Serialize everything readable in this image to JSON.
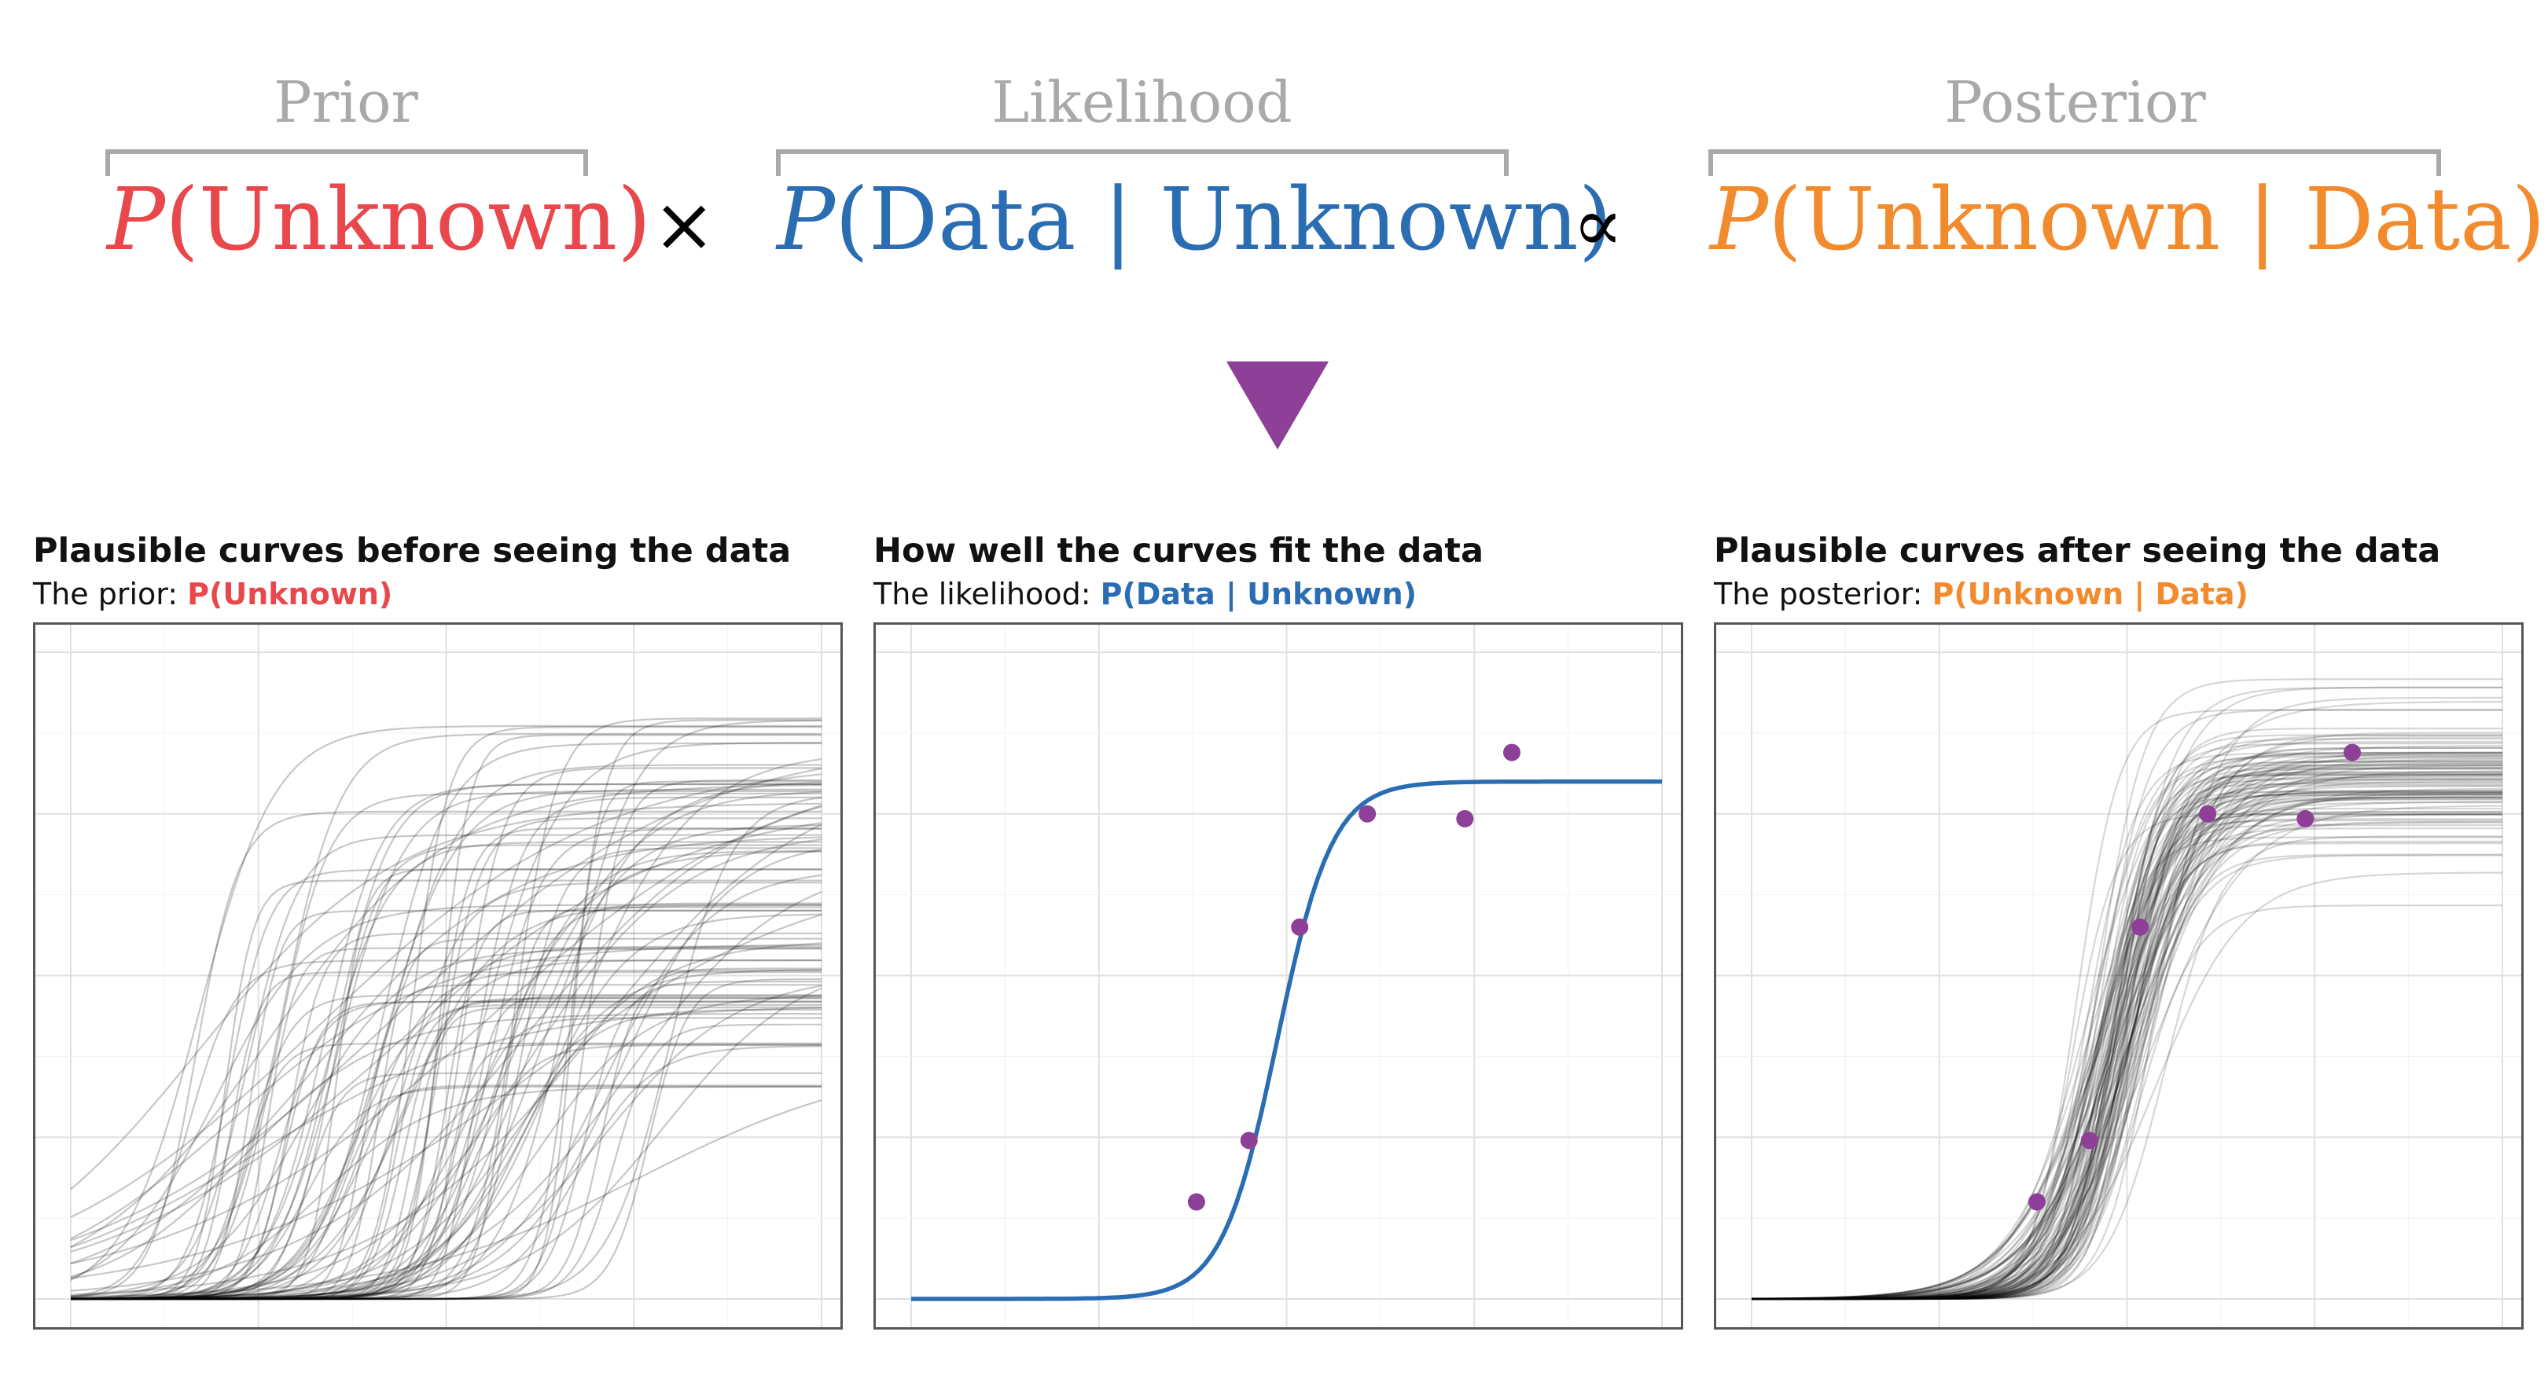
{
  "equation": {
    "prior": {
      "label": "Prior",
      "p": "P",
      "body": "(Unknown)",
      "color": "#e8474c"
    },
    "times": "×",
    "likelihood": {
      "label": "Likelihood",
      "p": "P",
      "body": "(Data | Unknown)",
      "color": "#2a6db2"
    },
    "proportional": "∝",
    "posterior": {
      "label": "Posterior",
      "p": "P",
      "body": "(Unknown | Data)",
      "color": "#f28a2e"
    },
    "bracket_color": "#a9a9a9"
  },
  "arrow": {
    "icon": "down-triangle-icon",
    "color": "#8e3f98"
  },
  "panels": [
    {
      "title": "Plausible curves before seeing the data",
      "sub_prefix": "The prior: ",
      "sub_highlight": "P(Unknown)",
      "highlight_color": "#e8474c"
    },
    {
      "title": "How well the curves fit the data",
      "sub_prefix": "The likelihood: ",
      "sub_highlight": "P(Data | Unknown)",
      "highlight_color": "#2a6db2"
    },
    {
      "title": "Plausible curves after seeing the data",
      "sub_prefix": "The posterior: ",
      "sub_highlight": "P(Unknown | Data)",
      "highlight_color": "#f28a2e"
    }
  ],
  "chart_data": {
    "type": "line",
    "x_range": [
      0,
      4
    ],
    "y_range": [
      0,
      4
    ],
    "grid": true,
    "data_points": {
      "x": [
        1.52,
        1.8,
        2.07,
        2.43,
        2.95,
        3.2
      ],
      "y": [
        0.6,
        0.98,
        2.3,
        3.0,
        2.97,
        3.38
      ],
      "color": "#8e3f98"
    },
    "fitted_curve": {
      "asymptote": 3.2,
      "midpoint": 1.95,
      "rate": 6.8,
      "color": "#2a6db2"
    },
    "prior_draws": 100,
    "posterior_draws": 100,
    "draw_color": "#000000"
  }
}
